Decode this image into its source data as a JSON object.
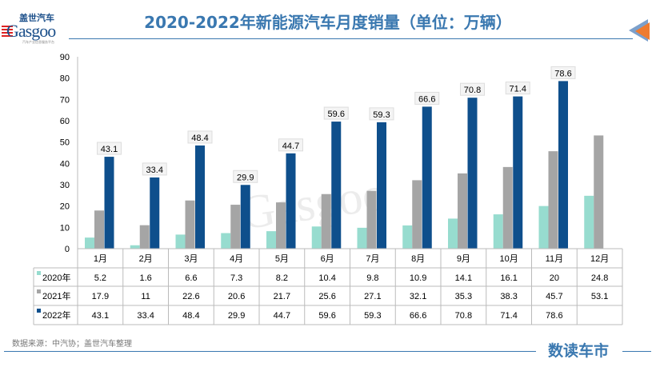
{
  "header": {
    "title": "2020-2022年新能源汽车月度销量（单位：万辆）"
  },
  "logo": {
    "cn": "盖世汽车",
    "en": "Gasgoo",
    "sub": "汽车产业信息服务平台"
  },
  "footer": {
    "source": "数据来源：中汽协；盖世汽车整理",
    "brand": "数读车市"
  },
  "colors": {
    "2020年": "#97dccf",
    "2021年": "#a5a5a5",
    "2022年": "#0e4f8c",
    "title": "#3a78b0"
  },
  "chart_data": {
    "type": "bar",
    "title": "2020-2022年新能源汽车月度销量（单位：万辆）",
    "categories": [
      "1月",
      "2月",
      "3月",
      "4月",
      "5月",
      "6月",
      "7月",
      "8月",
      "9月",
      "10月",
      "11月",
      "12月"
    ],
    "series": [
      {
        "name": "2020年",
        "values": [
          5.2,
          1.6,
          6.6,
          7.3,
          8.2,
          10.4,
          9.8,
          10.9,
          14.1,
          16.1,
          20,
          24.8
        ]
      },
      {
        "name": "2021年",
        "values": [
          17.9,
          11,
          22.6,
          20.6,
          21.7,
          25.6,
          27.1,
          32.1,
          35.3,
          38.3,
          45.7,
          53.1
        ]
      },
      {
        "name": "2022年",
        "values": [
          43.1,
          33.4,
          48.4,
          29.9,
          44.7,
          59.6,
          59.3,
          66.6,
          70.8,
          71.4,
          78.6,
          null
        ]
      }
    ],
    "ylim": [
      0,
      90
    ],
    "yticks": [
      0,
      10,
      20,
      30,
      40,
      50,
      60,
      70,
      80,
      90
    ],
    "data_labels_series": "2022年",
    "data_table": true,
    "grid": false
  }
}
